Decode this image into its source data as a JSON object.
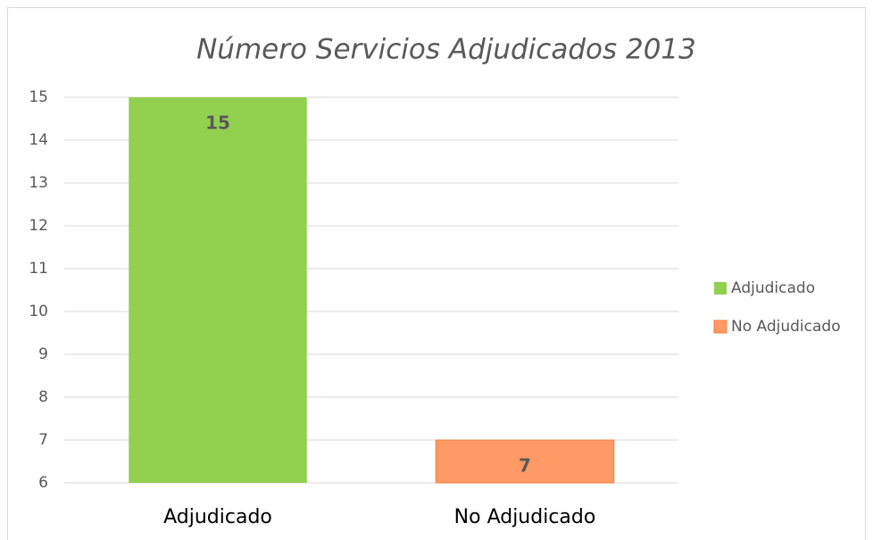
{
  "chart_data": {
    "type": "bar",
    "title": "Número Servicios Adjudicados 2013",
    "categories": [
      "Adjudicado",
      "No Adjudicado"
    ],
    "values": [
      15,
      7
    ],
    "colors": [
      "#92d050",
      "#ff9966"
    ],
    "ylim": [
      6,
      15
    ],
    "yticks": [
      6,
      7,
      8,
      9,
      10,
      11,
      12,
      13,
      14,
      15
    ],
    "grid": true,
    "legend": "right"
  }
}
